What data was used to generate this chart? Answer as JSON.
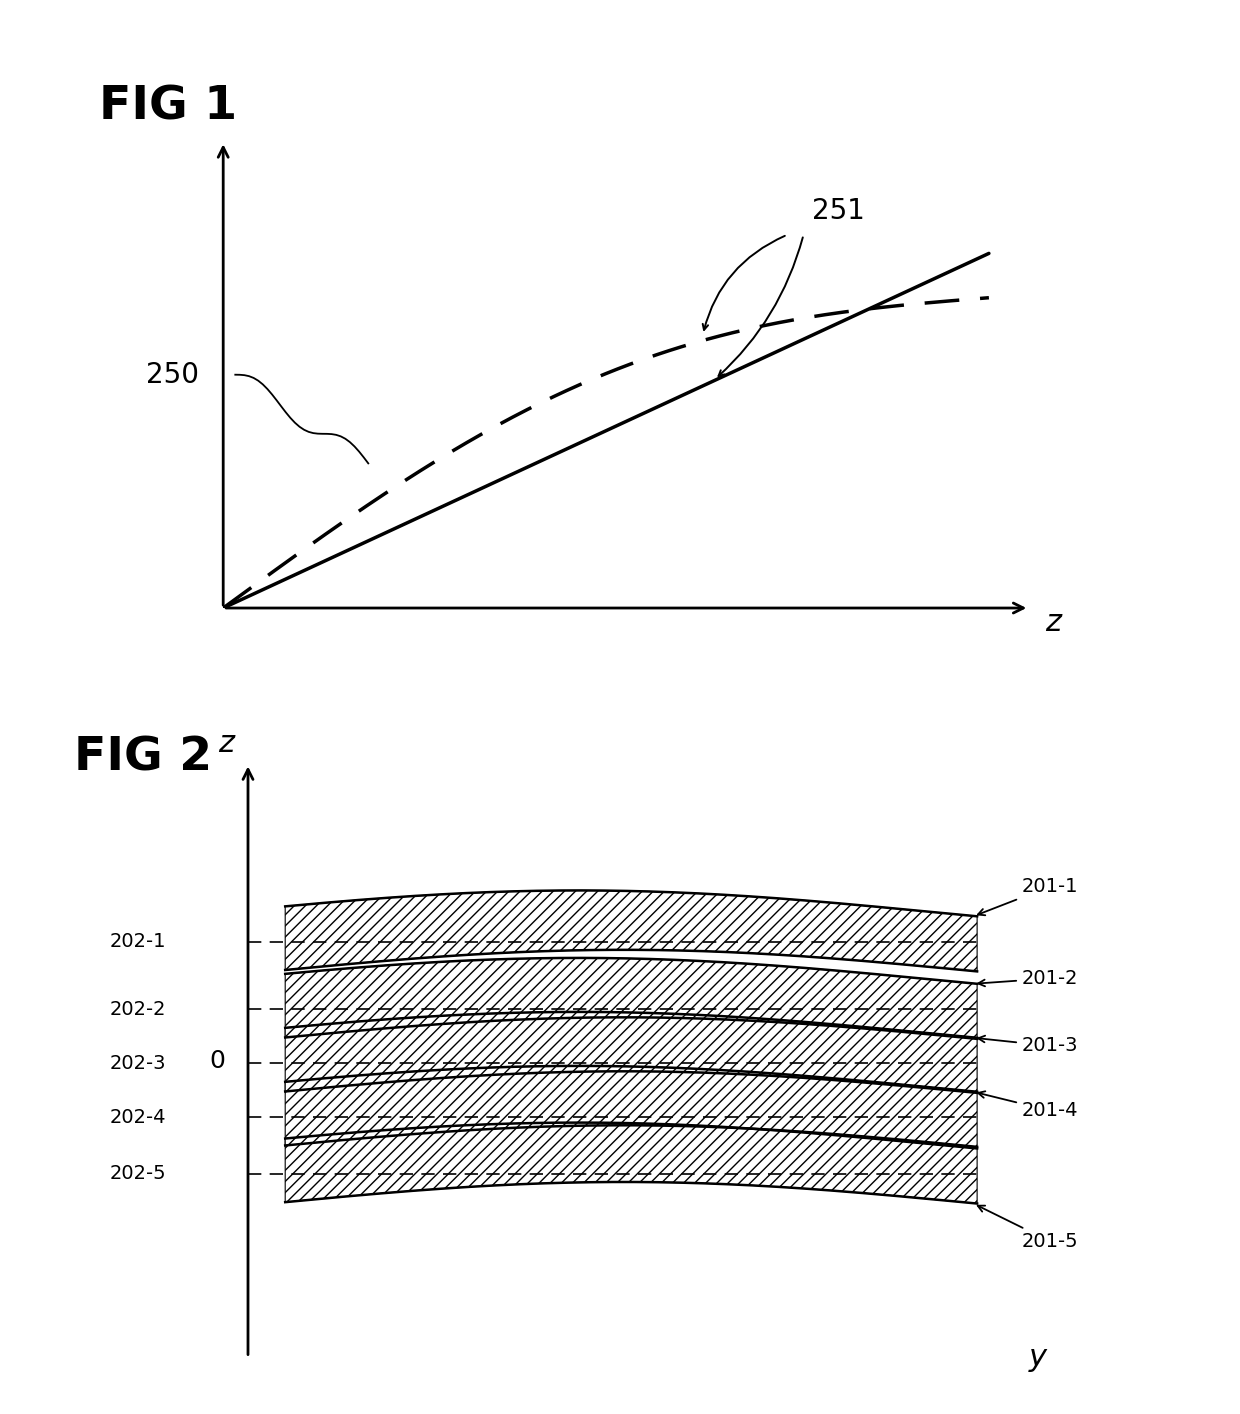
{
  "fig_title1": "FIG 1",
  "fig_title2": "FIG 2",
  "label_250": "250",
  "label_251": "251",
  "label_z1": "z",
  "label_z2": "z",
  "label_y": "y",
  "label_0": "0",
  "labels_202": [
    "202-1",
    "202-2",
    "202-3",
    "202-4",
    "202-5"
  ],
  "labels_201": [
    "201-1",
    "201-2",
    "201-3",
    "201-4",
    "201-5"
  ],
  "bg_color": "#ffffff",
  "line_color": "#000000",
  "hatch_pattern": "///",
  "slice_centers": [
    2.2,
    0.95,
    -0.05,
    -1.05,
    -2.1
  ],
  "half_thickness": 0.55,
  "dashed_zs": [
    2.2,
    0.95,
    -0.05,
    -1.05,
    -2.1
  ]
}
